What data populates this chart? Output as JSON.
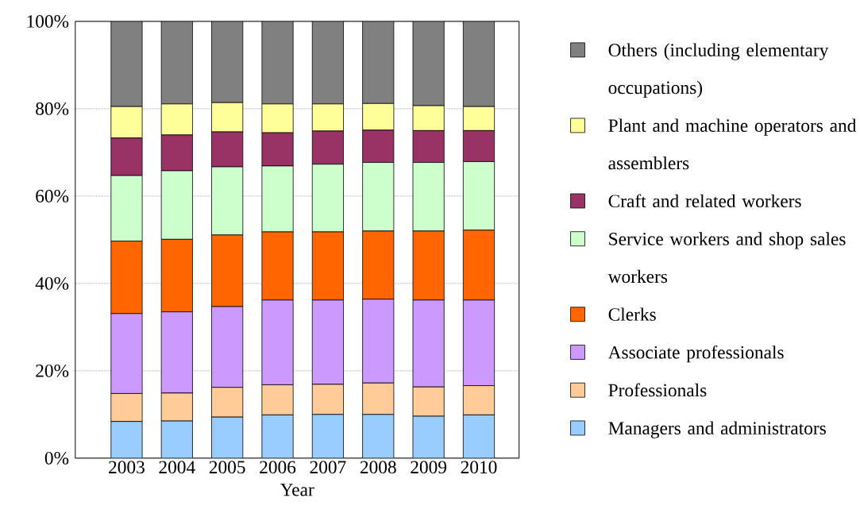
{
  "chart_data": {
    "type": "bar",
    "stacked": true,
    "xlabel": "Year",
    "categories": [
      "2003",
      "2004",
      "2005",
      "2006",
      "2007",
      "2008",
      "2009",
      "2010"
    ],
    "ylim": [
      0,
      100
    ],
    "yticks": [
      {
        "value": 0,
        "label": "0%"
      },
      {
        "value": 20,
        "label": "20%"
      },
      {
        "value": 40,
        "label": "40%"
      },
      {
        "value": 60,
        "label": "60%"
      },
      {
        "value": 80,
        "label": "80%"
      },
      {
        "value": 100,
        "label": "100%"
      }
    ],
    "grid": "y",
    "legend": "right",
    "series": [
      {
        "name": "Managers and administrators",
        "color": "#99ccff",
        "values": [
          8.4,
          8.5,
          9.4,
          9.9,
          10.0,
          10.0,
          9.6,
          9.9
        ]
      },
      {
        "name": "Professionals",
        "color": "#ffcc99",
        "values": [
          6.4,
          6.4,
          6.8,
          6.9,
          6.9,
          7.2,
          6.7,
          6.7
        ]
      },
      {
        "name": "Associate professionals",
        "color": "#cc99ff",
        "values": [
          18.3,
          18.6,
          18.5,
          19.4,
          19.3,
          19.2,
          19.9,
          19.6
        ]
      },
      {
        "name": "Clerks",
        "color": "#ff6600",
        "values": [
          16.6,
          16.6,
          16.4,
          15.6,
          15.6,
          15.6,
          15.8,
          16.0
        ]
      },
      {
        "name": "Service workers and shop sales workers",
        "color": "#ccffcc",
        "values": [
          15.0,
          15.7,
          15.6,
          15.1,
          15.5,
          15.7,
          15.7,
          15.7
        ]
      },
      {
        "name": "Craft and related workers",
        "color": "#993366",
        "values": [
          8.6,
          8.2,
          8.0,
          7.6,
          7.6,
          7.4,
          7.3,
          7.1
        ]
      },
      {
        "name": "Plant and machine operators and assemblers",
        "color": "#ffff99",
        "values": [
          7.2,
          7.1,
          6.7,
          6.6,
          6.2,
          6.1,
          5.7,
          5.5
        ]
      },
      {
        "name": "Others (including elementary occupations)",
        "color": "#808080",
        "values": [
          19.5,
          18.9,
          18.6,
          18.9,
          18.9,
          18.8,
          19.3,
          19.5
        ]
      }
    ]
  }
}
